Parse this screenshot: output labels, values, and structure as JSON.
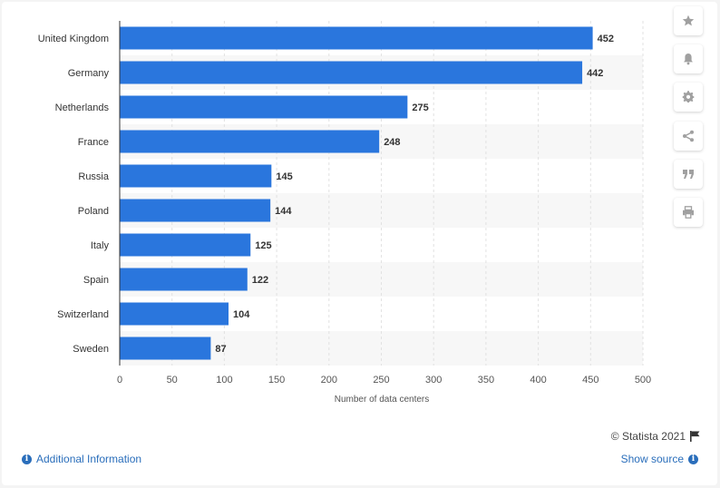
{
  "chart_data": {
    "type": "bar",
    "orientation": "horizontal",
    "categories": [
      "United Kingdom",
      "Germany",
      "Netherlands",
      "France",
      "Russia",
      "Poland",
      "Italy",
      "Spain",
      "Switzerland",
      "Sweden"
    ],
    "values": [
      452,
      442,
      275,
      248,
      145,
      144,
      125,
      122,
      104,
      87
    ],
    "xlabel": "Number of data centers",
    "ylabel": "",
    "xlim": [
      0,
      500
    ],
    "xticks": [
      0,
      50,
      100,
      150,
      200,
      250,
      300,
      350,
      400,
      450,
      500
    ],
    "grid": true,
    "bar_color": "#2a76dd"
  },
  "toolbar": {
    "buttons": [
      {
        "name": "star-icon"
      },
      {
        "name": "bell-icon"
      },
      {
        "name": "gear-icon"
      },
      {
        "name": "share-icon"
      },
      {
        "name": "quote-icon"
      },
      {
        "name": "print-icon"
      }
    ]
  },
  "footer": {
    "credit": "© Statista 2021",
    "additional_info": "Additional Information",
    "show_source": "Show source",
    "link_color": "#2a6ebb"
  }
}
